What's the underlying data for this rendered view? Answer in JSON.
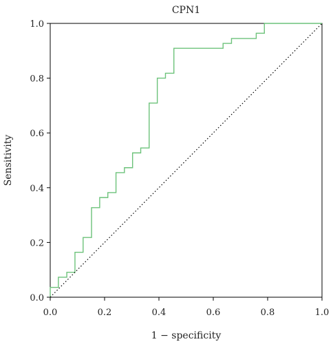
{
  "chart_data": {
    "type": "line",
    "title": "CPN1",
    "xlabel": "1 − specificity",
    "ylabel": "Sensitivity",
    "xlim": [
      0,
      1
    ],
    "ylim": [
      0,
      1
    ],
    "x_ticks": [
      "0.0",
      "0.2",
      "0.4",
      "0.6",
      "0.8",
      "1.0"
    ],
    "y_ticks": [
      "0.0",
      "0.2",
      "0.4",
      "0.6",
      "0.8",
      "1.0"
    ],
    "grid": false,
    "colors": {
      "roc": "#6cc27a",
      "diagonal": "#000000",
      "axes": "#000000"
    },
    "series": [
      {
        "points": [
          [
            0.0,
            0.0
          ],
          [
            0.0,
            0.036
          ],
          [
            0.03,
            0.036
          ],
          [
            0.03,
            0.073
          ],
          [
            0.061,
            0.073
          ],
          [
            0.061,
            0.091
          ],
          [
            0.091,
            0.091
          ],
          [
            0.091,
            0.164
          ],
          [
            0.121,
            0.164
          ],
          [
            0.121,
            0.218
          ],
          [
            0.152,
            0.218
          ],
          [
            0.152,
            0.327
          ],
          [
            0.182,
            0.327
          ],
          [
            0.182,
            0.364
          ],
          [
            0.212,
            0.364
          ],
          [
            0.212,
            0.382
          ],
          [
            0.242,
            0.382
          ],
          [
            0.242,
            0.455
          ],
          [
            0.273,
            0.455
          ],
          [
            0.273,
            0.473
          ],
          [
            0.303,
            0.473
          ],
          [
            0.303,
            0.527
          ],
          [
            0.333,
            0.527
          ],
          [
            0.333,
            0.545
          ],
          [
            0.364,
            0.545
          ],
          [
            0.364,
            0.709
          ],
          [
            0.394,
            0.709
          ],
          [
            0.394,
            0.8
          ],
          [
            0.424,
            0.8
          ],
          [
            0.424,
            0.818
          ],
          [
            0.455,
            0.818
          ],
          [
            0.455,
            0.909
          ],
          [
            0.636,
            0.909
          ],
          [
            0.636,
            0.927
          ],
          [
            0.667,
            0.927
          ],
          [
            0.667,
            0.945
          ],
          [
            0.758,
            0.945
          ],
          [
            0.758,
            0.964
          ],
          [
            0.788,
            0.964
          ],
          [
            0.788,
            1.0
          ],
          [
            1.0,
            1.0
          ]
        ]
      },
      {
        "style": "dotted",
        "points": [
          [
            0.0,
            0.0
          ],
          [
            1.0,
            1.0
          ]
        ]
      }
    ]
  }
}
